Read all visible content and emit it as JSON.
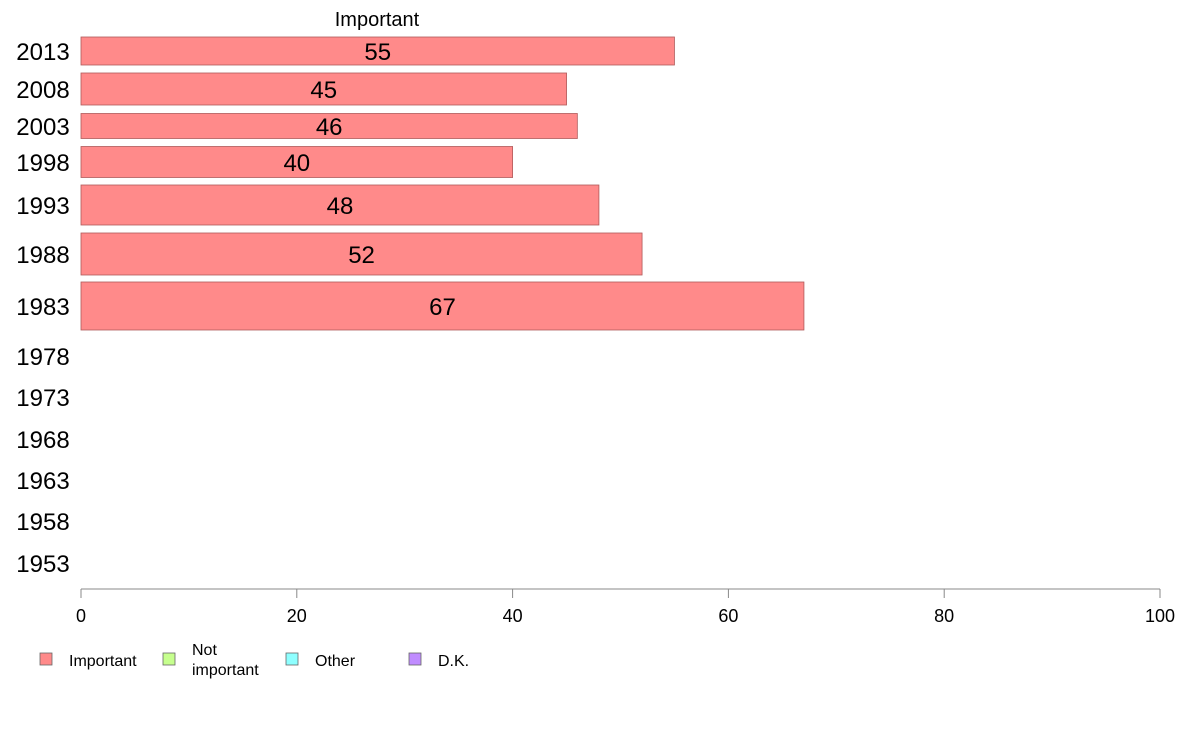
{
  "chart_data": {
    "type": "bar",
    "orientation": "horizontal",
    "stacked": true,
    "title": "",
    "xlabel": "",
    "ylabel": "",
    "xlim": [
      0,
      100
    ],
    "x_ticks": [
      "0",
      "20",
      "40",
      "60",
      "80",
      "100"
    ],
    "categories": [
      "2013",
      "2008",
      "2003",
      "1998",
      "1993",
      "1988",
      "1983",
      "1978",
      "1973",
      "1968",
      "1963",
      "1958",
      "1953"
    ],
    "series": [
      {
        "name": "Important",
        "color": "#ff8a8a",
        "values": [
          55,
          45,
          46,
          40,
          48,
          52,
          67,
          null,
          null,
          null,
          null,
          null,
          null
        ],
        "data_labels": [
          "55",
          "45",
          "46",
          "40",
          "48",
          "52",
          "67",
          "",
          "",
          "",
          "",
          "",
          ""
        ]
      },
      {
        "name": "Not important",
        "color": "#c6ff8e",
        "values": [
          null,
          null,
          null,
          null,
          null,
          null,
          null,
          null,
          null,
          null,
          null,
          null,
          null
        ]
      },
      {
        "name": "Other",
        "color": "#8effff",
        "values": [
          null,
          null,
          null,
          null,
          null,
          null,
          null,
          null,
          null,
          null,
          null,
          null,
          null
        ]
      },
      {
        "name": "D.K.",
        "color": "#c08cff",
        "values": [
          null,
          null,
          null,
          null,
          null,
          null,
          null,
          null,
          null,
          null,
          null,
          null,
          null
        ]
      }
    ],
    "column_header": "Important",
    "legend": {
      "placement": "bottom-left",
      "items": [
        {
          "text_lines": [
            "Important"
          ],
          "color": "#ff8a8a"
        },
        {
          "text_lines": [
            "Not",
            "important"
          ],
          "color": "#c6ff8e"
        },
        {
          "text_lines": [
            "Other"
          ],
          "color": "#8effff"
        },
        {
          "text_lines": [
            "D.K."
          ],
          "color": "#c08cff"
        }
      ]
    },
    "grid": false
  }
}
